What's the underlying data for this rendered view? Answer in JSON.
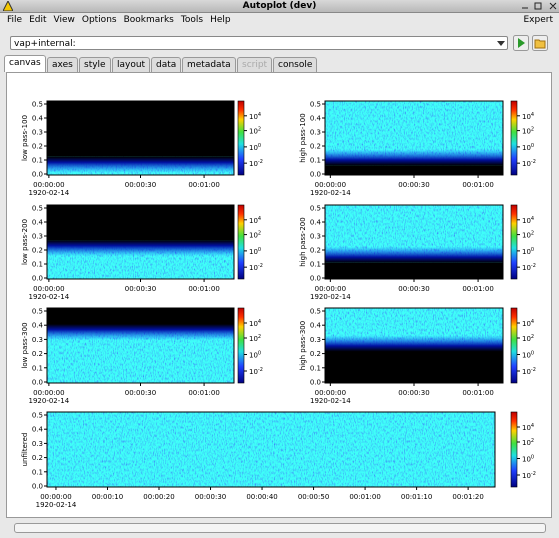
{
  "window": {
    "title": "Autoplot (dev)"
  },
  "menu": {
    "items": [
      "File",
      "Edit",
      "View",
      "Options",
      "Bookmarks",
      "Tools",
      "Help"
    ],
    "right": "Expert"
  },
  "uri": "vap+internal:",
  "tabs": [
    "canvas",
    "axes",
    "style",
    "layout",
    "data",
    "metadata",
    "script",
    "console"
  ],
  "yticks": [
    "0.0",
    "0.1",
    "0.2",
    "0.3",
    "0.4",
    "0.5"
  ],
  "colorbar": [
    {
      "base": "10",
      "exp": "4"
    },
    {
      "base": "10",
      "exp": "2"
    },
    {
      "base": "10",
      "exp": "0"
    },
    {
      "base": "10",
      "exp": "-2"
    }
  ],
  "panels": [
    {
      "ylabel": "low pass-100",
      "xticks": [
        "00:00:00",
        "00:00:30",
        "00:01:00"
      ],
      "date": "1920-02-14"
    },
    {
      "ylabel": "high pass-100",
      "xticks": [
        "00:00:00",
        "00:00:30",
        "00:01:00"
      ],
      "date": "1920-02-14"
    },
    {
      "ylabel": "low pass-200",
      "xticks": [
        "00:00:00",
        "00:00:30",
        "00:01:00"
      ],
      "date": "1920-02-14"
    },
    {
      "ylabel": "high pass-200",
      "xticks": [
        "00:00:00",
        "00:00:30",
        "00:01:00"
      ],
      "date": "1920-02-14"
    },
    {
      "ylabel": "low pass-300",
      "xticks": [
        "00:00:00",
        "00:00:30",
        "00:01:00"
      ],
      "date": "1920-02-14"
    },
    {
      "ylabel": "high pass-300",
      "xticks": [
        "00:00:00",
        "00:00:30",
        "00:01:00"
      ],
      "date": "1920-02-14"
    },
    {
      "ylabel": "unfiltered",
      "xticks": [
        "00:00:00",
        "00:00:10",
        "00:00:20",
        "00:00:30",
        "00:00:40",
        "00:00:50",
        "00:01:00",
        "00:01:10",
        "00:01:20"
      ],
      "date": "1920-02-14"
    }
  ]
}
